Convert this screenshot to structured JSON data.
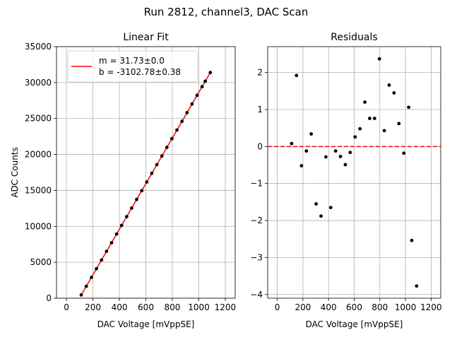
{
  "figure_title": "Run 2812, channel3, DAC Scan",
  "colors": {
    "data": "#000000",
    "fit": "#ff0000",
    "grid": "#b0b0b0",
    "zero_line": "#ff0000"
  },
  "chart_data": [
    {
      "type": "scatter",
      "title": "Linear Fit",
      "xlabel": "DAC Voltage [mVppSE]",
      "ylabel": "ADC Counts",
      "xlim": [
        -75,
        1275
      ],
      "ylim": [
        0,
        35000
      ],
      "xticks": [
        0,
        200,
        400,
        600,
        800,
        1000,
        1200
      ],
      "yticks": [
        0,
        5000,
        10000,
        15000,
        20000,
        25000,
        30000,
        35000
      ],
      "grid": true,
      "legend": {
        "location": "top-left",
        "entries": [
          "m = 31.73±0.0",
          "b = -3102.78±0.38"
        ]
      },
      "fit": {
        "slope": 31.73,
        "intercept": -3102.78
      },
      "x": [
        112,
        150,
        189,
        227,
        265,
        303,
        341,
        379,
        417,
        455,
        493,
        531,
        569,
        607,
        645,
        683,
        721,
        759,
        797,
        835,
        873,
        911,
        949,
        987,
        1025,
        1049,
        1087
      ],
      "y": [
        451,
        1658,
        2897,
        4102,
        5311,
        6516,
        7718,
        8925,
        10130,
        11338,
        12543,
        13747,
        14957,
        16165,
        17371,
        18578,
        19783,
        20988,
        22196,
        23401,
        24609,
        25810,
        27017,
        28224,
        29430,
        30188,
        31392
      ]
    },
    {
      "type": "scatter",
      "title": "Residuals",
      "xlabel": "DAC Voltage [mVppSE]",
      "ylabel": "",
      "xlim": [
        -75,
        1275
      ],
      "ylim": [
        -4.1,
        2.7
      ],
      "xticks": [
        0,
        200,
        400,
        600,
        800,
        1000,
        1200
      ],
      "yticks": [
        -4,
        -3,
        -2,
        -1,
        0,
        1,
        2
      ],
      "grid": true,
      "reference_line": {
        "y": 0,
        "style": "dashed"
      },
      "x": [
        112,
        150,
        189,
        227,
        265,
        303,
        341,
        379,
        417,
        455,
        493,
        531,
        569,
        607,
        645,
        683,
        721,
        759,
        797,
        835,
        873,
        911,
        949,
        987,
        1025,
        1049,
        1087
      ],
      "y": [
        0.08,
        1.92,
        -0.52,
        -0.12,
        0.34,
        -1.55,
        -1.88,
        -0.28,
        -1.65,
        -0.12,
        -0.27,
        -0.49,
        -0.16,
        0.26,
        0.48,
        1.2,
        0.76,
        0.76,
        2.37,
        0.43,
        1.66,
        1.45,
        0.62,
        -0.18,
        1.06,
        -2.54,
        -3.77
      ]
    }
  ]
}
